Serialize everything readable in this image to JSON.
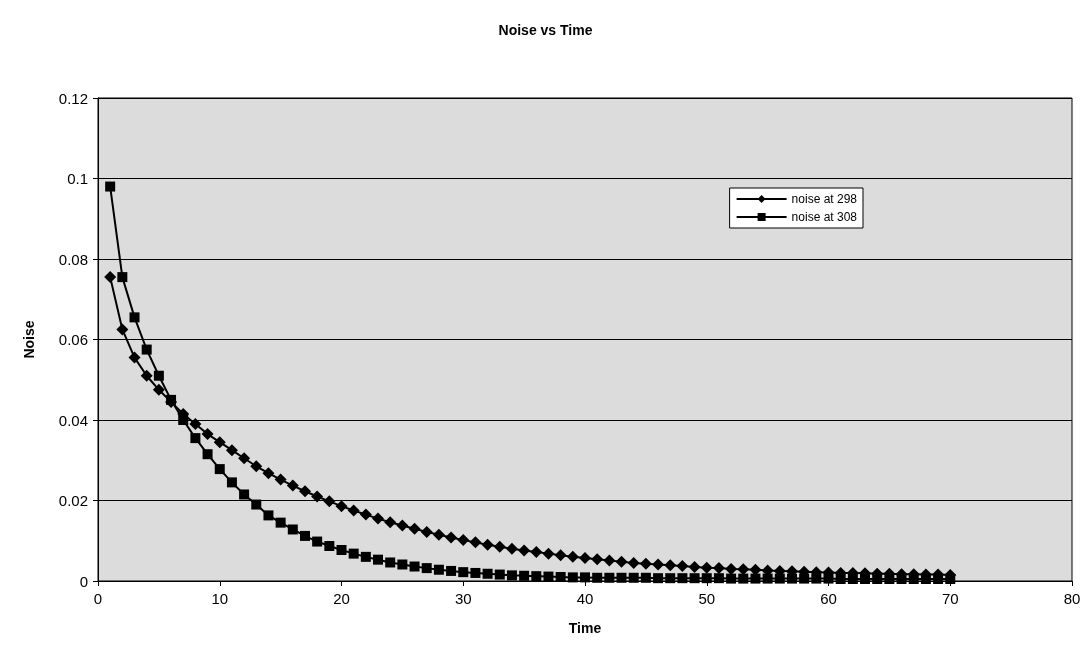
{
  "chart_data": {
    "type": "line",
    "title": "Noise vs Time",
    "xlabel": "Time",
    "ylabel": "Noise",
    "x": [
      1,
      2,
      3,
      4,
      5,
      6,
      7,
      8,
      9,
      10,
      11,
      12,
      13,
      14,
      15,
      16,
      17,
      18,
      19,
      20,
      21,
      22,
      23,
      24,
      25,
      26,
      27,
      28,
      29,
      30,
      31,
      32,
      33,
      34,
      35,
      36,
      37,
      38,
      39,
      40,
      41,
      42,
      43,
      44,
      45,
      46,
      47,
      48,
      49,
      50,
      51,
      52,
      53,
      54,
      55,
      56,
      57,
      58,
      59,
      60,
      61,
      62,
      63,
      64,
      65,
      66,
      67,
      68,
      69,
      70
    ],
    "series": [
      {
        "name": "noise at 298",
        "color": "#000000",
        "marker": "diamond",
        "values": [
          0.0755,
          0.0625,
          0.0555,
          0.051,
          0.0475,
          0.0445,
          0.0415,
          0.039,
          0.0365,
          0.0345,
          0.0325,
          0.0305,
          0.0285,
          0.0268,
          0.0252,
          0.0237,
          0.0223,
          0.021,
          0.0198,
          0.0186,
          0.0175,
          0.0165,
          0.0155,
          0.0146,
          0.0138,
          0.013,
          0.0122,
          0.0115,
          0.0108,
          0.0102,
          0.0096,
          0.009,
          0.0085,
          0.008,
          0.0076,
          0.0072,
          0.0068,
          0.0064,
          0.006,
          0.0057,
          0.0054,
          0.0051,
          0.0048,
          0.0045,
          0.0043,
          0.0041,
          0.0039,
          0.0037,
          0.0035,
          0.0033,
          0.0032,
          0.003,
          0.0029,
          0.0028,
          0.0026,
          0.0025,
          0.0024,
          0.0023,
          0.0022,
          0.0021,
          0.002,
          0.002,
          0.0019,
          0.0018,
          0.0018,
          0.0017,
          0.0017,
          0.0016,
          0.0016,
          0.0015
        ]
      },
      {
        "name": "noise at 308",
        "color": "#000000",
        "marker": "square",
        "values": [
          0.098,
          0.0755,
          0.0655,
          0.0575,
          0.051,
          0.045,
          0.04,
          0.0355,
          0.0315,
          0.0278,
          0.0245,
          0.0215,
          0.019,
          0.0163,
          0.0145,
          0.0128,
          0.0112,
          0.0098,
          0.0087,
          0.0077,
          0.0068,
          0.006,
          0.0053,
          0.0046,
          0.0041,
          0.0036,
          0.0032,
          0.0028,
          0.0025,
          0.0022,
          0.002,
          0.0018,
          0.0016,
          0.0014,
          0.0013,
          0.0012,
          0.0011,
          0.001,
          0.0009,
          0.0009,
          0.0008,
          0.0008,
          0.0008,
          0.0008,
          0.0008,
          0.0007,
          0.0007,
          0.0007,
          0.0007,
          0.0007,
          0.0007,
          0.0006,
          0.0006,
          0.0006,
          0.0006,
          0.0006,
          0.0006,
          0.0006,
          0.0006,
          0.0006,
          0.0005,
          0.0005,
          0.0005,
          0.0005,
          0.0005,
          0.0005,
          0.0005,
          0.0005,
          0.0005,
          0.0005
        ]
      }
    ],
    "xlim": [
      0,
      80
    ],
    "xticks": [
      0,
      10,
      20,
      30,
      40,
      50,
      60,
      70,
      80
    ],
    "ylim": [
      0,
      0.12
    ],
    "yticks": [
      0,
      0.02,
      0.04,
      0.06,
      0.08,
      0.1,
      0.12
    ],
    "grid": "y",
    "legend": "top right",
    "line_style": "solid"
  }
}
